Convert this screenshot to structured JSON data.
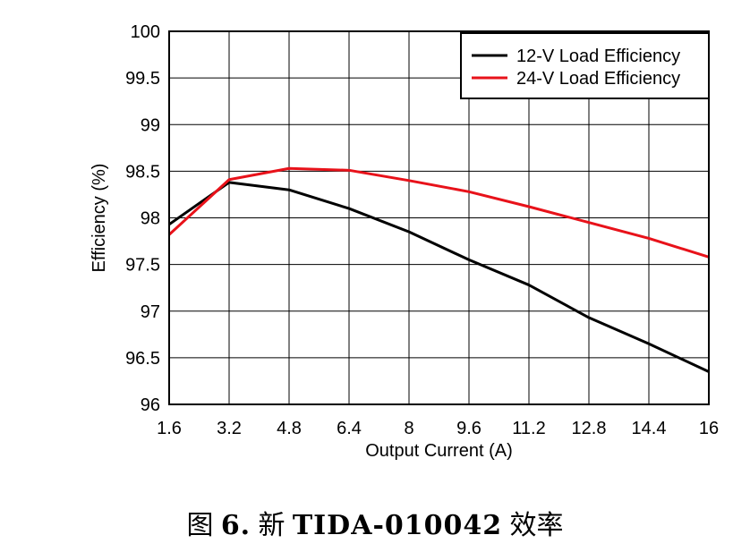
{
  "chart_data": {
    "type": "line",
    "title": "",
    "xlabel": "Output Current (A)",
    "ylabel": "Efficiency (%)",
    "xlim": [
      1.6,
      16
    ],
    "ylim": [
      96,
      100
    ],
    "x_ticks": [
      "1.6",
      "3.2",
      "4.8",
      "6.4",
      "8",
      "9.6",
      "11.2",
      "12.8",
      "14.4",
      "16"
    ],
    "y_ticks": [
      "96",
      "96.5",
      "97",
      "97.5",
      "98",
      "98.5",
      "99",
      "99.5",
      "100"
    ],
    "grid": true,
    "legend_position": "top-right",
    "series": [
      {
        "name": "12-V Load Efficiency",
        "color": "#000000",
        "x": [
          1.6,
          3.2,
          4.8,
          6.4,
          8,
          9.6,
          11.2,
          12.8,
          14.4,
          16
        ],
        "y": [
          97.93,
          98.38,
          98.3,
          98.1,
          97.85,
          97.55,
          97.28,
          96.93,
          96.65,
          96.35
        ]
      },
      {
        "name": "24-V Load Efficiency",
        "color": "#e8121a",
        "x": [
          1.6,
          3.2,
          4.8,
          6.4,
          8,
          9.6,
          11.2,
          12.8,
          14.4,
          16
        ],
        "y": [
          97.82,
          98.41,
          98.53,
          98.51,
          98.4,
          98.28,
          98.12,
          97.95,
          97.78,
          97.58
        ]
      }
    ]
  },
  "caption": {
    "prefix": "图",
    "figure_num": "6.",
    "middle": "新",
    "code": "TIDA-010042",
    "suffix": "效率"
  }
}
